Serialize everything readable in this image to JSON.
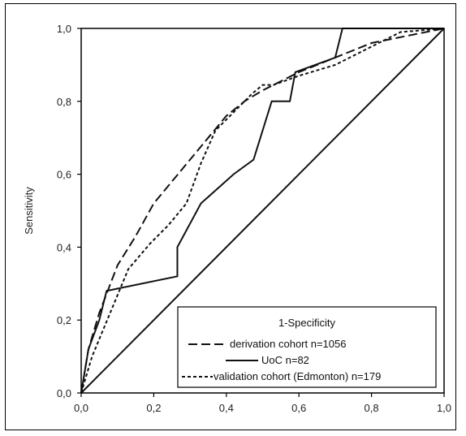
{
  "chart_data": {
    "type": "line",
    "title": "",
    "xlabel": "",
    "ylabel": "Sensitivity",
    "xlim": [
      0,
      1
    ],
    "ylim": [
      0,
      1
    ],
    "x_ticks": [
      "0,0",
      "0,2",
      "0,4",
      "0,6",
      "0,8",
      "1,0"
    ],
    "y_ticks": [
      "0,0",
      "0,2",
      "0,4",
      "0,6",
      "0,8",
      "1,0"
    ],
    "grid": false,
    "legend_position": "bottom-right",
    "legend_title": "1-Specificity",
    "series": [
      {
        "name": "derivation cohort n=1056",
        "style": "dashed",
        "x": [
          0.0,
          0.02,
          0.05,
          0.1,
          0.15,
          0.2,
          0.25,
          0.3,
          0.35,
          0.4,
          0.45,
          0.5,
          0.6,
          0.7,
          0.8,
          0.9,
          1.0
        ],
        "y": [
          0.0,
          0.12,
          0.22,
          0.35,
          0.43,
          0.52,
          0.58,
          0.64,
          0.7,
          0.76,
          0.8,
          0.83,
          0.88,
          0.92,
          0.96,
          0.98,
          1.0
        ]
      },
      {
        "name": "UoC n=82",
        "style": "solid",
        "x": [
          0.0,
          0.02,
          0.05,
          0.07,
          0.265,
          0.265,
          0.33,
          0.42,
          0.475,
          0.525,
          0.575,
          0.59,
          0.7,
          0.72,
          1.0
        ],
        "y": [
          0.0,
          0.12,
          0.2,
          0.28,
          0.32,
          0.4,
          0.52,
          0.6,
          0.64,
          0.8,
          0.8,
          0.88,
          0.92,
          1.0,
          1.0
        ]
      },
      {
        "name": "validation cohort (Edmonton) n=179",
        "style": "dotted",
        "x": [
          0.0,
          0.03,
          0.08,
          0.13,
          0.19,
          0.24,
          0.29,
          0.33,
          0.37,
          0.42,
          0.47,
          0.5,
          0.53,
          0.6,
          0.7,
          0.8,
          0.88,
          1.0
        ],
        "y": [
          0.0,
          0.1,
          0.22,
          0.34,
          0.41,
          0.46,
          0.52,
          0.63,
          0.72,
          0.77,
          0.82,
          0.845,
          0.845,
          0.87,
          0.9,
          0.95,
          0.99,
          1.0
        ]
      },
      {
        "name": "",
        "style": "reference",
        "x": [
          0,
          1
        ],
        "y": [
          0,
          1
        ]
      }
    ]
  },
  "colors": {
    "line": "#111111",
    "border": "#000000",
    "background": "#ffffff"
  }
}
